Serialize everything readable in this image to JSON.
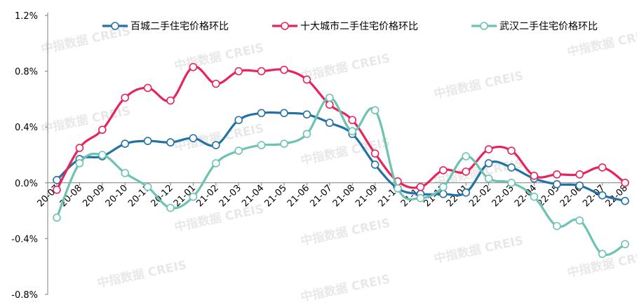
{
  "chart_data": {
    "type": "line",
    "title": "",
    "xlabel": "",
    "ylabel": "",
    "ylim": [
      -0.8,
      1.2
    ],
    "yticks": [
      "-0.8%",
      "-0.4%",
      "0.0%",
      "0.4%",
      "0.8%",
      "1.2%"
    ],
    "y_unit": "%",
    "grid": false,
    "legend_position": "top",
    "categories": [
      "20-07",
      "20-08",
      "20-09",
      "20-10",
      "20-11",
      "20-12",
      "21-01",
      "21-02",
      "21-03",
      "21-04",
      "21-05",
      "21-06",
      "21-07",
      "21-08",
      "21-09",
      "21-10",
      "21-11",
      "21-12",
      "22-01",
      "22-02",
      "22-03",
      "22-04",
      "22-05",
      "22-06",
      "22-07",
      "22-08"
    ],
    "series": [
      {
        "name": "百城二手住宅价格环比",
        "color": "#2472a4",
        "values": [
          0.02,
          0.17,
          0.19,
          0.28,
          0.3,
          0.29,
          0.32,
          0.27,
          0.45,
          0.5,
          0.5,
          0.49,
          0.43,
          0.35,
          0.13,
          -0.04,
          -0.08,
          -0.08,
          -0.07,
          0.14,
          0.11,
          0.03,
          -0.01,
          -0.02,
          -0.09,
          -0.13
        ]
      },
      {
        "name": "十大城市二手住宅价格环比",
        "color": "#e8245c",
        "values": [
          -0.05,
          0.25,
          0.38,
          0.61,
          0.68,
          0.59,
          0.83,
          0.71,
          0.8,
          0.8,
          0.81,
          0.74,
          0.56,
          0.45,
          0.21,
          0.01,
          -0.03,
          0.09,
          0.08,
          0.24,
          0.23,
          0.05,
          0.06,
          0.06,
          0.11,
          0.0
        ]
      },
      {
        "name": "武汉二手住宅价格环比",
        "color": "#6dc3b1",
        "values": [
          -0.25,
          0.14,
          0.2,
          0.07,
          -0.03,
          -0.18,
          -0.1,
          0.14,
          0.23,
          0.27,
          0.28,
          0.35,
          0.61,
          0.37,
          0.52,
          -0.04,
          -0.11,
          -0.03,
          0.19,
          0.03,
          0.0,
          -0.1,
          -0.31,
          -0.27,
          -0.51,
          -0.44
        ]
      }
    ]
  },
  "watermark": "中指数据 CREIS"
}
